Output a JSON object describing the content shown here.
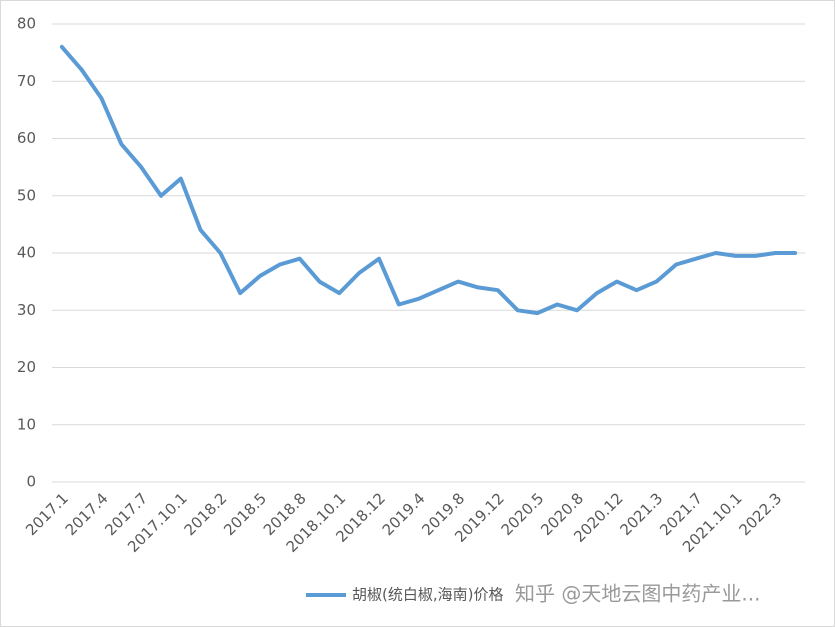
{
  "chart_data": {
    "type": "line",
    "categories": [
      "2017.1",
      null,
      "2017.4",
      null,
      "2017.7",
      null,
      "2017.10.1",
      null,
      "2018.2",
      null,
      "2018.5",
      null,
      "2018.8",
      null,
      "2018.10.1",
      null,
      "2018.12",
      null,
      "2019.4",
      null,
      "2019.8",
      null,
      "2019.12",
      null,
      "2020.5",
      null,
      "2020.8",
      null,
      "2020.12",
      null,
      "2021.3",
      null,
      "2021.7",
      null,
      "2021.10.1",
      null,
      "2022.3",
      null
    ],
    "series": [
      {
        "name": "胡椒(统白椒,海南)价格",
        "color": "#5b9bd5",
        "values": [
          76,
          72,
          67,
          59,
          55,
          50,
          53,
          44,
          40,
          33,
          36,
          38,
          39,
          35,
          33,
          36.5,
          39,
          31,
          32,
          33.5,
          35,
          34,
          33.5,
          30,
          29.5,
          31,
          30,
          33,
          35,
          33.5,
          35,
          38,
          39,
          40,
          39.5,
          39.5,
          40,
          40
        ]
      }
    ],
    "ylim": [
      0,
      80
    ],
    "yticks": [
      0,
      10,
      20,
      30,
      40,
      50,
      60,
      70,
      80
    ],
    "grid": true,
    "legend": "bottom",
    "watermark": "知乎 @天地云图中药产业..."
  }
}
